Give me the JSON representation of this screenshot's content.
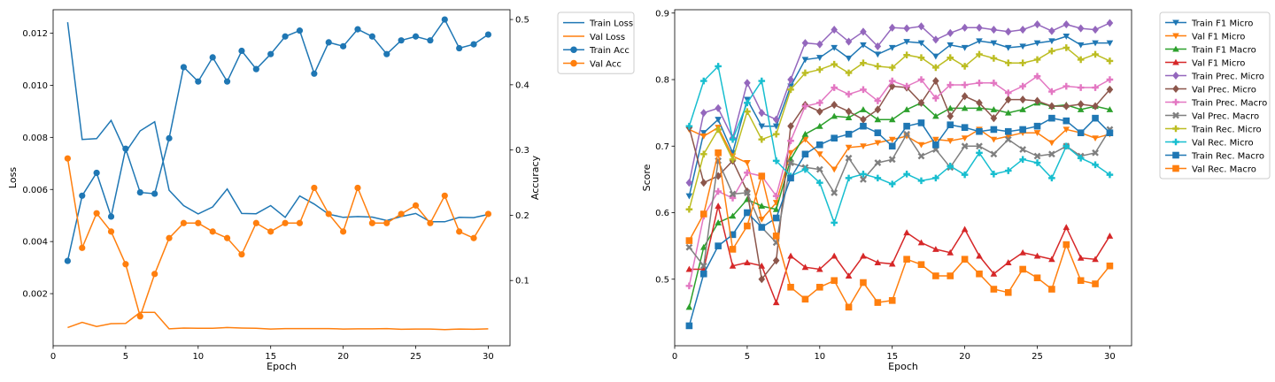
{
  "chart_data": [
    {
      "type": "line",
      "xlabel": "Epoch",
      "ylabel": "Loss",
      "y2label": "Accuracy",
      "xlim": [
        0,
        31.5
      ],
      "ylim": [
        0.0,
        0.0129
      ],
      "y2lim": [
        0.0,
        0.515
      ],
      "xticks": [
        0,
        5,
        10,
        15,
        20,
        25,
        30
      ],
      "xtick_labels": [
        "0",
        "5",
        "10",
        "15",
        "20",
        "25",
        "30"
      ],
      "yticks": [
        0.002,
        0.004,
        0.006,
        0.008,
        0.01,
        0.012
      ],
      "ytick_labels": [
        "0.002",
        "0.004",
        "0.006",
        "0.008",
        "0.010",
        "0.012"
      ],
      "y2ticks": [
        0.1,
        0.2,
        0.3,
        0.4,
        0.5
      ],
      "y2tick_labels": [
        "0.1",
        "0.2",
        "0.3",
        "0.4",
        "0.5"
      ],
      "grid": false,
      "legend_position": "outside-right",
      "x": [
        1,
        2,
        3,
        4,
        5,
        6,
        7,
        8,
        9,
        10,
        11,
        12,
        13,
        14,
        15,
        16,
        17,
        18,
        19,
        20,
        21,
        22,
        23,
        24,
        25,
        26,
        27,
        28,
        29,
        30
      ],
      "series": [
        {
          "name": "Train Loss",
          "axis": "left",
          "color": "#1f77b4",
          "marker": "none",
          "values": [
            0.01242,
            0.00792,
            0.00795,
            0.00865,
            0.00743,
            0.00825,
            0.0086,
            0.00597,
            0.00538,
            0.00506,
            0.00533,
            0.00602,
            0.00508,
            0.00507,
            0.00538,
            0.00493,
            0.00575,
            0.00544,
            0.00505,
            0.00493,
            0.00496,
            0.00494,
            0.00481,
            0.00496,
            0.00508,
            0.00476,
            0.00476,
            0.00493,
            0.00492,
            0.00504
          ]
        },
        {
          "name": "Val Loss",
          "axis": "left",
          "color": "#ff7f0e",
          "marker": "none",
          "values": [
            0.0007,
            0.0009,
            0.00074,
            0.00085,
            0.00086,
            0.00128,
            0.00128,
            0.00065,
            0.00068,
            0.00067,
            0.00067,
            0.0007,
            0.00068,
            0.00067,
            0.00064,
            0.00066,
            0.00066,
            0.00066,
            0.00066,
            0.00064,
            0.00065,
            0.00065,
            0.00066,
            0.00063,
            0.00064,
            0.00064,
            0.00062,
            0.00064,
            0.00063,
            0.00065
          ]
        },
        {
          "name": "Train Acc",
          "axis": "right",
          "color": "#1f77b4",
          "marker": "circle",
          "values": [
            0.13,
            0.23,
            0.265,
            0.198,
            0.302,
            0.235,
            0.233,
            0.318,
            0.427,
            0.405,
            0.442,
            0.405,
            0.452,
            0.424,
            0.447,
            0.474,
            0.483,
            0.417,
            0.465,
            0.459,
            0.485,
            0.474,
            0.447,
            0.468,
            0.474,
            0.468,
            0.5,
            0.456,
            0.462,
            0.477
          ]
        },
        {
          "name": "Val Acc",
          "axis": "right",
          "color": "#ff7f0e",
          "marker": "circle",
          "values": [
            0.287,
            0.15,
            0.203,
            0.175,
            0.125,
            0.045,
            0.11,
            0.165,
            0.188,
            0.188,
            0.175,
            0.165,
            0.14,
            0.188,
            0.175,
            0.188,
            0.188,
            0.242,
            0.202,
            0.175,
            0.242,
            0.188,
            0.188,
            0.202,
            0.215,
            0.188,
            0.23,
            0.175,
            0.165,
            0.202
          ]
        }
      ]
    },
    {
      "type": "line",
      "xlabel": "Epoch",
      "ylabel": "Score",
      "xlim": [
        0,
        31.5
      ],
      "ylim": [
        0.4,
        0.905
      ],
      "xticks": [
        0,
        5,
        10,
        15,
        20,
        25,
        30
      ],
      "xtick_labels": [
        "0",
        "5",
        "10",
        "15",
        "20",
        "25",
        "30"
      ],
      "yticks": [
        0.5,
        0.6,
        0.7,
        0.8,
        0.9
      ],
      "ytick_labels": [
        "0.5",
        "0.6",
        "0.7",
        "0.8",
        "0.9"
      ],
      "grid": false,
      "legend_position": "outside-right",
      "x": [
        1,
        2,
        3,
        4,
        5,
        6,
        7,
        8,
        9,
        10,
        11,
        12,
        13,
        14,
        15,
        16,
        17,
        18,
        19,
        20,
        21,
        22,
        23,
        24,
        25,
        26,
        27,
        28,
        29,
        30
      ],
      "series": [
        {
          "name": "Train F1 Micro",
          "color": "#1f77b4",
          "marker": "tri-down",
          "values": [
            0.625,
            0.72,
            0.74,
            0.69,
            0.77,
            0.73,
            0.73,
            0.79,
            0.83,
            0.833,
            0.848,
            0.832,
            0.852,
            0.838,
            0.848,
            0.857,
            0.855,
            0.835,
            0.852,
            0.848,
            0.858,
            0.855,
            0.848,
            0.85,
            0.855,
            0.858,
            0.865,
            0.852,
            0.855,
            0.855
          ]
        },
        {
          "name": "Val F1 Micro",
          "color": "#ff7f0e",
          "marker": "tri-down",
          "values": [
            0.725,
            0.715,
            0.728,
            0.685,
            0.675,
            0.59,
            0.615,
            0.69,
            0.71,
            0.688,
            0.665,
            0.698,
            0.7,
            0.705,
            0.71,
            0.715,
            0.702,
            0.71,
            0.708,
            0.712,
            0.725,
            0.71,
            0.715,
            0.72,
            0.72,
            0.705,
            0.725,
            0.72,
            0.712,
            0.718
          ]
        },
        {
          "name": "Train F1 Macro",
          "color": "#2ca02c",
          "marker": "tri-up",
          "values": [
            0.458,
            0.548,
            0.585,
            0.595,
            0.62,
            0.61,
            0.605,
            0.68,
            0.718,
            0.73,
            0.745,
            0.743,
            0.755,
            0.74,
            0.74,
            0.755,
            0.765,
            0.745,
            0.757,
            0.757,
            0.757,
            0.755,
            0.75,
            0.755,
            0.765,
            0.76,
            0.762,
            0.755,
            0.76,
            0.755
          ]
        },
        {
          "name": "Val F1 Micro",
          "color": "#d62728",
          "marker": "tri-up",
          "values": [
            0.515,
            0.515,
            0.61,
            0.52,
            0.525,
            0.52,
            0.465,
            0.535,
            0.518,
            0.515,
            0.535,
            0.505,
            0.535,
            0.525,
            0.523,
            0.57,
            0.555,
            0.545,
            0.54,
            0.575,
            0.535,
            0.508,
            0.525,
            0.54,
            0.535,
            0.53,
            0.578,
            0.532,
            0.53,
            0.565
          ]
        },
        {
          "name": "Train Prec. Micro",
          "color": "#9467bd",
          "marker": "diamond",
          "values": [
            0.645,
            0.75,
            0.757,
            0.712,
            0.795,
            0.75,
            0.74,
            0.8,
            0.855,
            0.853,
            0.875,
            0.857,
            0.872,
            0.85,
            0.878,
            0.877,
            0.88,
            0.86,
            0.87,
            0.878,
            0.878,
            0.875,
            0.872,
            0.875,
            0.883,
            0.873,
            0.883,
            0.877,
            0.875,
            0.885
          ]
        },
        {
          "name": "Val Prec. Micro",
          "color": "#8c564b",
          "marker": "diamond",
          "values": [
            0.728,
            0.645,
            0.655,
            0.678,
            0.632,
            0.5,
            0.528,
            0.73,
            0.762,
            0.752,
            0.762,
            0.752,
            0.74,
            0.755,
            0.79,
            0.788,
            0.765,
            0.798,
            0.745,
            0.775,
            0.765,
            0.742,
            0.77,
            0.77,
            0.768,
            0.76,
            0.76,
            0.763,
            0.76,
            0.785
          ]
        },
        {
          "name": "Train Prec. Macro",
          "color": "#e377c2",
          "marker": "plus",
          "values": [
            0.49,
            0.595,
            0.632,
            0.622,
            0.66,
            0.655,
            0.625,
            0.708,
            0.76,
            0.765,
            0.788,
            0.778,
            0.785,
            0.768,
            0.798,
            0.79,
            0.8,
            0.772,
            0.792,
            0.792,
            0.795,
            0.795,
            0.78,
            0.79,
            0.805,
            0.782,
            0.79,
            0.788,
            0.788,
            0.8
          ]
        },
        {
          "name": "Val Prec. Macro",
          "color": "#7f7f7f",
          "marker": "x",
          "values": [
            0.548,
            0.52,
            0.678,
            0.628,
            0.63,
            0.578,
            0.555,
            0.675,
            0.668,
            0.665,
            0.63,
            0.682,
            0.65,
            0.675,
            0.68,
            0.718,
            0.685,
            0.695,
            0.668,
            0.7,
            0.7,
            0.688,
            0.71,
            0.695,
            0.685,
            0.688,
            0.7,
            0.685,
            0.69,
            0.725
          ]
        },
        {
          "name": "Train Rec. Micro",
          "color": "#bcbd22",
          "marker": "plus",
          "values": [
            0.605,
            0.688,
            0.725,
            0.68,
            0.752,
            0.71,
            0.718,
            0.785,
            0.81,
            0.815,
            0.823,
            0.81,
            0.825,
            0.82,
            0.818,
            0.837,
            0.833,
            0.818,
            0.833,
            0.82,
            0.838,
            0.832,
            0.825,
            0.825,
            0.83,
            0.843,
            0.848,
            0.83,
            0.838,
            0.828
          ]
        },
        {
          "name": "Val Rec. Micro",
          "color": "#17becf",
          "marker": "plus",
          "values": [
            0.73,
            0.798,
            0.82,
            0.71,
            0.765,
            0.798,
            0.678,
            0.655,
            0.665,
            0.645,
            0.585,
            0.652,
            0.658,
            0.652,
            0.643,
            0.658,
            0.648,
            0.652,
            0.67,
            0.657,
            0.69,
            0.658,
            0.663,
            0.68,
            0.675,
            0.652,
            0.7,
            0.682,
            0.672,
            0.657
          ]
        },
        {
          "name": "Train Rec. Macro",
          "color": "#1f77b4",
          "marker": "square",
          "values": [
            0.43,
            0.508,
            0.55,
            0.567,
            0.6,
            0.578,
            0.592,
            0.652,
            0.688,
            0.702,
            0.712,
            0.718,
            0.73,
            0.72,
            0.7,
            0.73,
            0.735,
            0.702,
            0.732,
            0.728,
            0.722,
            0.725,
            0.722,
            0.725,
            0.73,
            0.742,
            0.738,
            0.72,
            0.742,
            0.72
          ]
        },
        {
          "name": "Val Rec. Macro",
          "color": "#ff7f0e",
          "marker": "square",
          "values": [
            0.558,
            0.598,
            0.69,
            0.545,
            0.58,
            0.655,
            0.565,
            0.488,
            0.47,
            0.488,
            0.498,
            0.458,
            0.495,
            0.465,
            0.468,
            0.53,
            0.522,
            0.505,
            0.505,
            0.53,
            0.508,
            0.485,
            0.48,
            0.515,
            0.502,
            0.485,
            0.552,
            0.498,
            0.493,
            0.52
          ]
        }
      ]
    }
  ]
}
